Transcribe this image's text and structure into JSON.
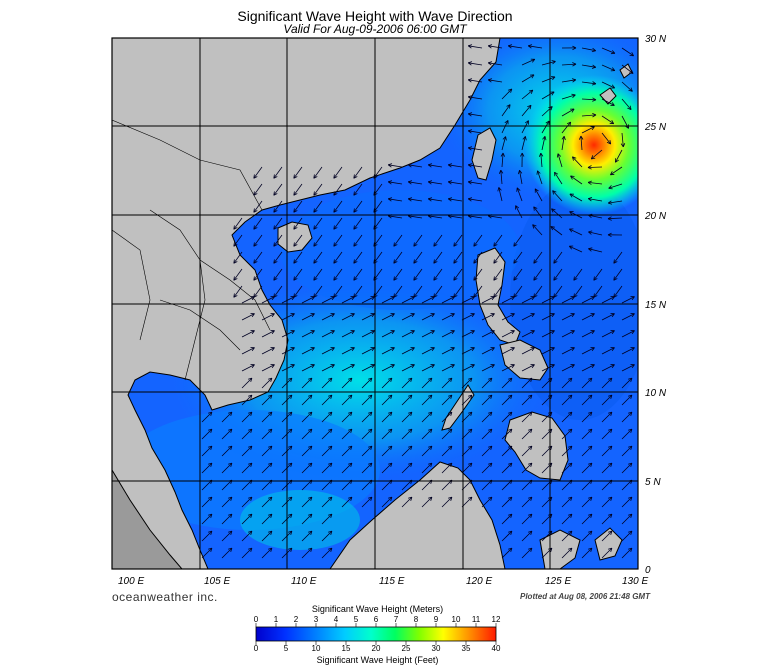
{
  "map": {
    "title": "Significant Wave Height with Wave Direction",
    "subtitle": "Valid For Aug-09-2006 06:00 GMT",
    "latitude_labels": [
      "30 N",
      "25 N",
      "20 N",
      "15 N",
      "10 N",
      "5 N",
      "0"
    ],
    "longitude_labels": [
      "100 E",
      "105 E",
      "110 E",
      "115 E",
      "120 E",
      "125 E",
      "130 E"
    ],
    "brand": "oceanweather inc.",
    "plotted": "Plotted at Aug 08, 2006 21:48 GMT",
    "colors": {
      "land": "#c0c0c0",
      "sea_low": "#0040ff",
      "sea_mid": "#00ccee",
      "sea_high": "#ff2000",
      "arrow": "#000033"
    }
  },
  "colorbar": {
    "title_top": "Significant Wave Height (Meters)",
    "title_bottom": "Significant Wave Height (Feet)",
    "meters_ticks": [
      "0",
      "1",
      "2",
      "3",
      "4",
      "5",
      "6",
      "7",
      "8",
      "9",
      "10",
      "11",
      "12"
    ],
    "feet_ticks": [
      "0",
      "5",
      "10",
      "15",
      "20",
      "25",
      "30",
      "35",
      "40"
    ]
  }
}
